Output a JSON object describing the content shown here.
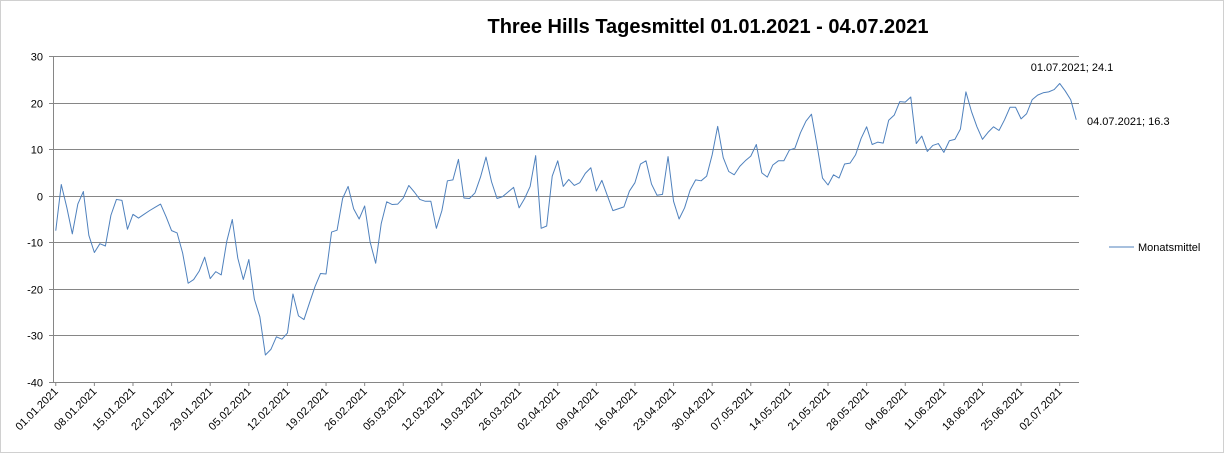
{
  "chart_data": {
    "type": "line",
    "title": "Three Hills Tagesmittel 01.01.2021  - 04.07.2021",
    "xlabel": "",
    "ylabel": "",
    "ylim": [
      -40,
      30
    ],
    "yticks": [
      30,
      20,
      10,
      0,
      -10,
      -20,
      -30,
      -40
    ],
    "grid": "horizontal",
    "legend_position": "right",
    "line_color": "#4f81bd",
    "x_tick_labels": [
      "01.01.2021",
      "08.01.2021",
      "15.01.2021",
      "22.01.2021",
      "29.01.2021",
      "05.02.2021",
      "12.02.2021",
      "19.02.2021",
      "26.02.2021",
      "05.03.2021",
      "12.03.2021",
      "19.03.2021",
      "26.03.2021",
      "02.04.2021",
      "09.04.2021",
      "16.04.2021",
      "23.04.2021",
      "30.04.2021",
      "07.05.2021",
      "14.05.2021",
      "21.05.2021",
      "28.05.2021",
      "04.06.2021",
      "11.06.2021",
      "18.06.2021",
      "25.06.2021",
      "02.07.2021"
    ],
    "x_start": "01.01.2021",
    "x_end": "04.07.2021",
    "annotations": [
      {
        "text": "01.07.2021; 24.1",
        "date": "01.07.2021",
        "value": 24.1
      },
      {
        "text": "04.07.2021; 16.3",
        "date": "04.07.2021",
        "value": 16.3
      }
    ],
    "series": [
      {
        "name": "Monatsmittel",
        "values": [
          -7.5,
          2.4,
          -2.5,
          -8.2,
          -1.8,
          0.9,
          -8.5,
          -12.2,
          -10.3,
          -10.8,
          -4.2,
          -0.8,
          -1.0,
          -7.2,
          -4.0,
          -4.8,
          -4.0,
          -3.2,
          -2.5,
          -1.8,
          -4.5,
          -7.5,
          -8.0,
          -12.3,
          -18.8,
          -18.0,
          -16.2,
          -13.2,
          -17.8,
          -16.3,
          -17.0,
          -9.8,
          -5.1,
          -13.4,
          -18.0,
          -13.7,
          -22.2,
          -26.0,
          -34.2,
          -33.0,
          -30.3,
          -30.8,
          -29.5,
          -21.1,
          -25.8,
          -26.6,
          -23.0,
          -19.5,
          -16.7,
          -16.8,
          -7.8,
          -7.4,
          -0.6,
          2.0,
          -2.8,
          -5.0,
          -2.2,
          -10.0,
          -14.5,
          -6.0,
          -1.3,
          -1.9,
          -1.8,
          -0.5,
          2.2,
          0.8,
          -0.8,
          -1.2,
          -1.2,
          -7.0,
          -3.2,
          3.2,
          3.4,
          7.8,
          -0.5,
          -0.6,
          0.6,
          4.0,
          8.3,
          3.0,
          -0.6,
          -0.2,
          0.8,
          1.8,
          -2.6,
          -0.6,
          2.0,
          8.6,
          -7.0,
          -6.5,
          4.2,
          7.5,
          2.0,
          3.5,
          2.2,
          2.8,
          4.8,
          6.0,
          1.0,
          3.3,
          0.0,
          -3.2,
          -2.8,
          -2.4,
          1.0,
          2.8,
          6.8,
          7.5,
          2.5,
          0.1,
          0.3,
          8.4,
          -1.2,
          -5.0,
          -2.6,
          1.2,
          3.4,
          3.2,
          4.2,
          8.8,
          14.9,
          8.2,
          5.2,
          4.5,
          6.3,
          7.5,
          8.5,
          11.0,
          4.9,
          4.0,
          6.6,
          7.5,
          7.5,
          9.8,
          10.2,
          13.5,
          16.0,
          17.5,
          10.9,
          3.8,
          2.3,
          4.5,
          3.8,
          6.8,
          7.0,
          8.8,
          12.3,
          14.8,
          11.0,
          11.5,
          11.3,
          16.2,
          17.3,
          20.2,
          20.1,
          21.2,
          11.2,
          12.8,
          9.5,
          10.8,
          11.2,
          9.3,
          11.8,
          12.1,
          14.3,
          22.3,
          18.1,
          14.8,
          12.1,
          13.6,
          14.8,
          14.0,
          16.3,
          19.0,
          19.0,
          16.5,
          17.6,
          20.6,
          21.6,
          22.1,
          22.3,
          22.8,
          24.1,
          22.5,
          20.6,
          16.3
        ]
      }
    ]
  }
}
